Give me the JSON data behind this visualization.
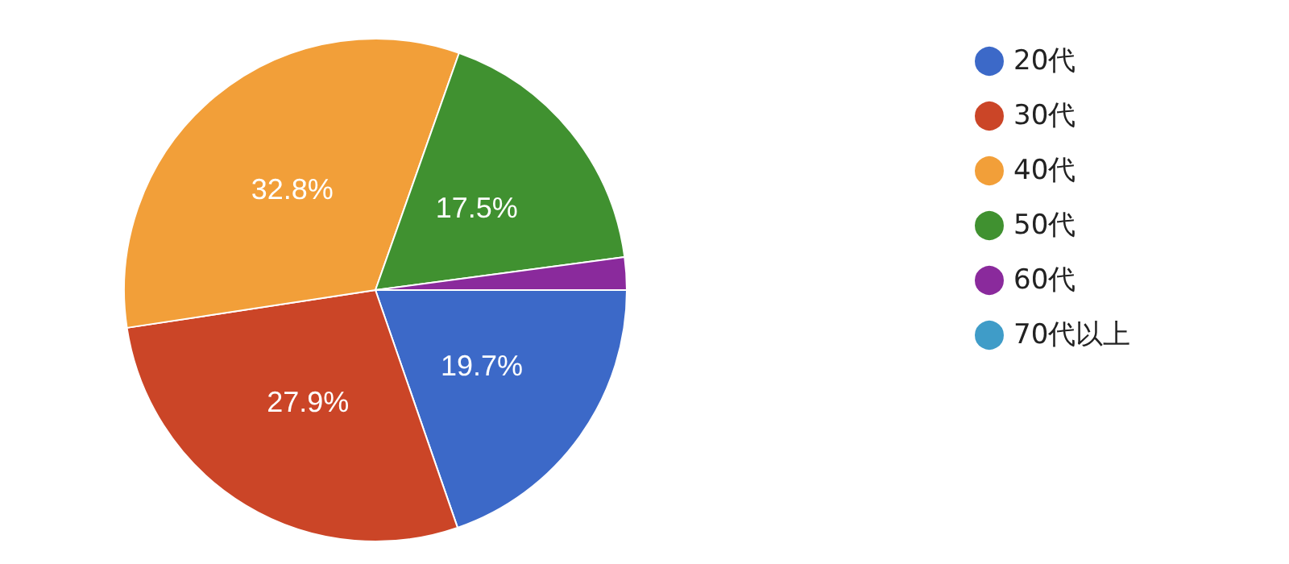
{
  "chart_data": {
    "type": "pie",
    "categories": [
      "20代",
      "30代",
      "40代",
      "50代",
      "60代",
      "70代以上"
    ],
    "values": [
      19.7,
      27.9,
      32.8,
      17.5,
      2.1,
      0
    ],
    "value_labels": [
      "19.7%",
      "27.9%",
      "32.8%",
      "17.5%",
      null,
      null
    ],
    "colors": [
      "#3c69c8",
      "#cb4527",
      "#f29f39",
      "#409130",
      "#8a2a9c",
      "#3f9cc8"
    ],
    "legend": "right"
  }
}
